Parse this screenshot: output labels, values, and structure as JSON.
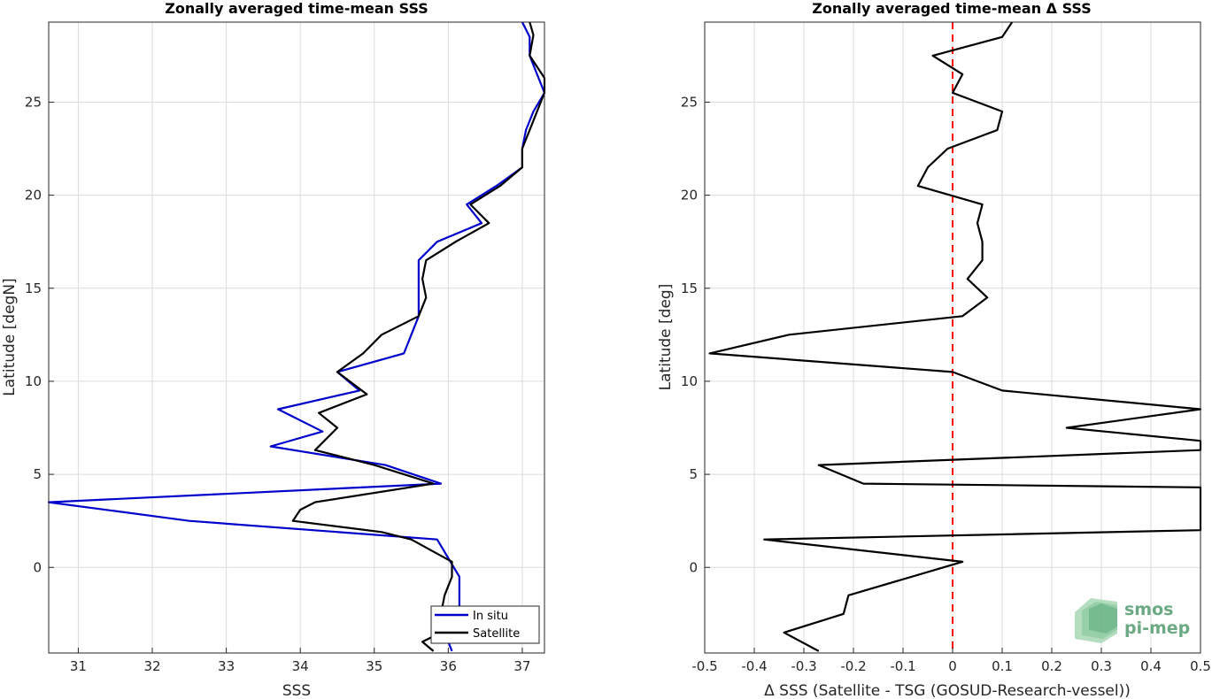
{
  "chart_data": [
    {
      "type": "line",
      "title": "Zonally averaged time-mean SSS",
      "xlabel": "SSS",
      "ylabel": "Latitude [degN]",
      "xlim": [
        30.6,
        37.3
      ],
      "ylim": [
        -4.6,
        29.3
      ],
      "xticks": [
        31,
        32,
        33,
        34,
        35,
        36,
        37
      ],
      "yticks": [
        0,
        5,
        10,
        15,
        20,
        25
      ],
      "grid": true,
      "legend_position": "bottom-right",
      "series": [
        {
          "name": "In situ",
          "color": "#0000cc",
          "points": [
            [
              36.05,
              -4.5
            ],
            [
              35.95,
              -3.5
            ],
            [
              36.15,
              -2.5
            ],
            [
              36.15,
              -1.5
            ],
            [
              36.15,
              -0.5
            ],
            [
              36.0,
              0.5
            ],
            [
              35.85,
              1.5
            ],
            [
              32.5,
              2.5
            ],
            [
              30.6,
              3.5
            ],
            [
              35.9,
              4.5
            ],
            [
              35.15,
              5.5
            ],
            [
              33.6,
              6.5
            ],
            [
              34.3,
              7.3
            ],
            [
              33.7,
              8.5
            ],
            [
              34.8,
              9.5
            ],
            [
              34.5,
              10.5
            ],
            [
              35.4,
              11.5
            ],
            [
              35.5,
              12.5
            ],
            [
              35.6,
              13.5
            ],
            [
              35.6,
              14.5
            ],
            [
              35.6,
              15.5
            ],
            [
              35.6,
              16.5
            ],
            [
              35.85,
              17.5
            ],
            [
              36.45,
              18.5
            ],
            [
              36.25,
              19.5
            ],
            [
              36.65,
              20.5
            ],
            [
              37.0,
              21.5
            ],
            [
              37.0,
              22.5
            ],
            [
              37.05,
              23.5
            ],
            [
              37.15,
              24.5
            ],
            [
              37.3,
              25.5
            ],
            [
              37.2,
              26.5
            ],
            [
              37.1,
              27.5
            ],
            [
              37.1,
              28.5
            ],
            [
              37.0,
              29.3
            ]
          ]
        },
        {
          "name": "Satellite",
          "color": "#000000",
          "points": [
            [
              35.8,
              -4.5
            ],
            [
              35.65,
              -4.0
            ],
            [
              35.9,
              -3.5
            ],
            [
              35.9,
              -2.5
            ],
            [
              35.95,
              -1.5
            ],
            [
              36.05,
              -0.5
            ],
            [
              36.05,
              0.3
            ],
            [
              35.5,
              1.5
            ],
            [
              35.1,
              1.9
            ],
            [
              33.9,
              2.5
            ],
            [
              34.0,
              3.1
            ],
            [
              34.2,
              3.5
            ],
            [
              35.8,
              4.5
            ],
            [
              35.0,
              5.5
            ],
            [
              34.2,
              6.3
            ],
            [
              34.5,
              7.5
            ],
            [
              34.25,
              8.3
            ],
            [
              34.9,
              9.3
            ],
            [
              34.5,
              10.5
            ],
            [
              34.85,
              11.5
            ],
            [
              35.1,
              12.5
            ],
            [
              35.6,
              13.5
            ],
            [
              35.7,
              14.5
            ],
            [
              35.65,
              15.5
            ],
            [
              35.7,
              16.5
            ],
            [
              36.1,
              17.5
            ],
            [
              36.55,
              18.5
            ],
            [
              36.3,
              19.5
            ],
            [
              36.7,
              20.5
            ],
            [
              37.0,
              21.5
            ],
            [
              37.0,
              22.5
            ],
            [
              37.1,
              23.5
            ],
            [
              37.2,
              24.5
            ],
            [
              37.3,
              25.5
            ],
            [
              37.3,
              26.3
            ],
            [
              37.1,
              27.5
            ],
            [
              37.15,
              28.6
            ],
            [
              37.1,
              29.3
            ]
          ]
        }
      ]
    },
    {
      "type": "line",
      "title": "Zonally averaged time-mean Δ SSS",
      "xlabel": "Δ SSS (Satellite - TSG (GOSUD-Research-vessel))",
      "ylabel": "Latitude [deg]",
      "xlim": [
        -0.5,
        0.5
      ],
      "ylim": [
        -4.6,
        29.3
      ],
      "xticks": [
        -0.5,
        -0.4,
        -0.3,
        -0.2,
        -0.1,
        0,
        0.1,
        0.2,
        0.3,
        0.4,
        0.5
      ],
      "xtick_labels": [
        "-0.5",
        "-0.4",
        "-0.3",
        "-0.2",
        "-0.1",
        "0",
        "0.1",
        "0.2",
        "0.3",
        "0.4",
        "0.5"
      ],
      "yticks": [
        0,
        5,
        10,
        15,
        20,
        25
      ],
      "grid": true,
      "reference_line": {
        "x": 0,
        "color": "#ff0000",
        "style": "dashed"
      },
      "series": [
        {
          "color": "#000000",
          "points": [
            [
              -0.27,
              -4.5
            ],
            [
              -0.34,
              -3.5
            ],
            [
              -0.22,
              -2.5
            ],
            [
              -0.21,
              -1.5
            ],
            [
              0.02,
              0.3
            ],
            [
              -0.38,
              1.5
            ],
            [
              0.5,
              2.0
            ],
            [
              0.5,
              4.3
            ],
            [
              -0.18,
              4.5
            ],
            [
              -0.27,
              5.5
            ],
            [
              0.5,
              6.3
            ],
            [
              0.5,
              6.8
            ],
            [
              0.23,
              7.5
            ],
            [
              0.5,
              8.5
            ],
            [
              0.1,
              9.5
            ],
            [
              0.0,
              10.5
            ],
            [
              -0.49,
              11.5
            ],
            [
              -0.33,
              12.5
            ],
            [
              0.02,
              13.5
            ],
            [
              0.07,
              14.5
            ],
            [
              0.03,
              15.5
            ],
            [
              0.06,
              16.5
            ],
            [
              0.06,
              17.5
            ],
            [
              0.05,
              18.5
            ],
            [
              0.06,
              19.5
            ],
            [
              -0.07,
              20.5
            ],
            [
              -0.05,
              21.5
            ],
            [
              -0.01,
              22.5
            ],
            [
              0.09,
              23.5
            ],
            [
              0.1,
              24.5
            ],
            [
              0.0,
              25.5
            ],
            [
              0.02,
              26.5
            ],
            [
              -0.04,
              27.5
            ],
            [
              0.1,
              28.5
            ],
            [
              0.12,
              29.3
            ]
          ]
        }
      ]
    }
  ],
  "logo": {
    "line1": "smos",
    "line2": "pi-mep"
  }
}
